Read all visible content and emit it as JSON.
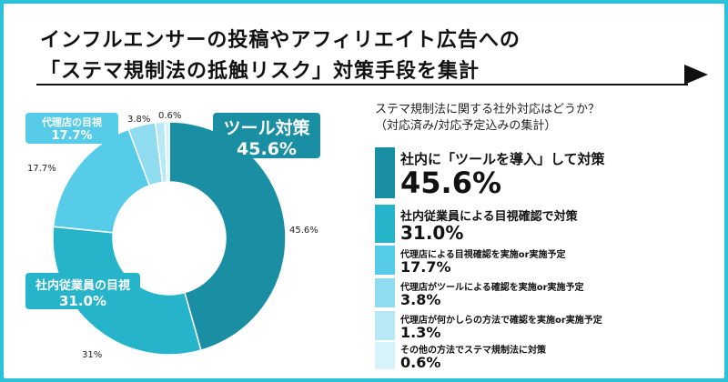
{
  "title": {
    "line1": "インフルエンサーの投稿やアフィリエイト広告への",
    "line2": "「ステマ規制法の抵触リスク」対策手段を集計"
  },
  "subtitle": {
    "line1": "ステマ規制法に関する社外対応はどうか？",
    "line2": "（対応済み/対応予定込みの集計）"
  },
  "callouts": {
    "tool": {
      "label": "ツール対策",
      "value": "45.6%"
    },
    "employee": {
      "label": "社内従業員の目視",
      "value": "31.0%"
    },
    "agency": {
      "label": "代理店の目視",
      "value": "17.7%"
    }
  },
  "slice_labels": {
    "s1": "45.6%",
    "s2": "31%",
    "s3": "17.7%",
    "s4": "3.8%",
    "s5": "0.6%"
  },
  "legend": [
    {
      "label": "社内に「ツールを導入」して対策",
      "value": "45.6%",
      "color": "#1a8fa3"
    },
    {
      "label": "社内従業員による目視確認で対策",
      "value": "31.0%",
      "color": "#26b4cb"
    },
    {
      "label": "代理店による目視確認を実施or実施予定",
      "value": "17.7%",
      "color": "#57cce9"
    },
    {
      "label": "代理店がツールによる確認を実施or実施予定",
      "value": "3.8%",
      "color": "#8fdcf1"
    },
    {
      "label": "代理店が何かしらの方法で確認を実施or実施予定",
      "value": "1.3%",
      "color": "#b6e8f6"
    },
    {
      "label": "その他の方法でステマ規制法に対策",
      "value": "0.6%",
      "color": "#d6f2fa"
    }
  ],
  "chart_data": {
    "type": "pie",
    "donut": true,
    "title": "ステマ規制法に関する社外対応はどうか？",
    "categories": [
      "社内に「ツールを導入」して対策",
      "社内従業員による目視確認で対策",
      "代理店による目視確認を実施or実施予定",
      "代理店がツールによる確認を実施or実施予定",
      "代理店が何かしらの方法で確認を実施or実施予定",
      "その他の方法でステマ規制法に対策"
    ],
    "values": [
      45.6,
      31.0,
      17.7,
      3.8,
      1.3,
      0.6
    ],
    "colors": [
      "#1a8fa3",
      "#26b4cb",
      "#57cce9",
      "#8fdcf1",
      "#b6e8f6",
      "#d6f2fa"
    ],
    "legend": "right"
  }
}
